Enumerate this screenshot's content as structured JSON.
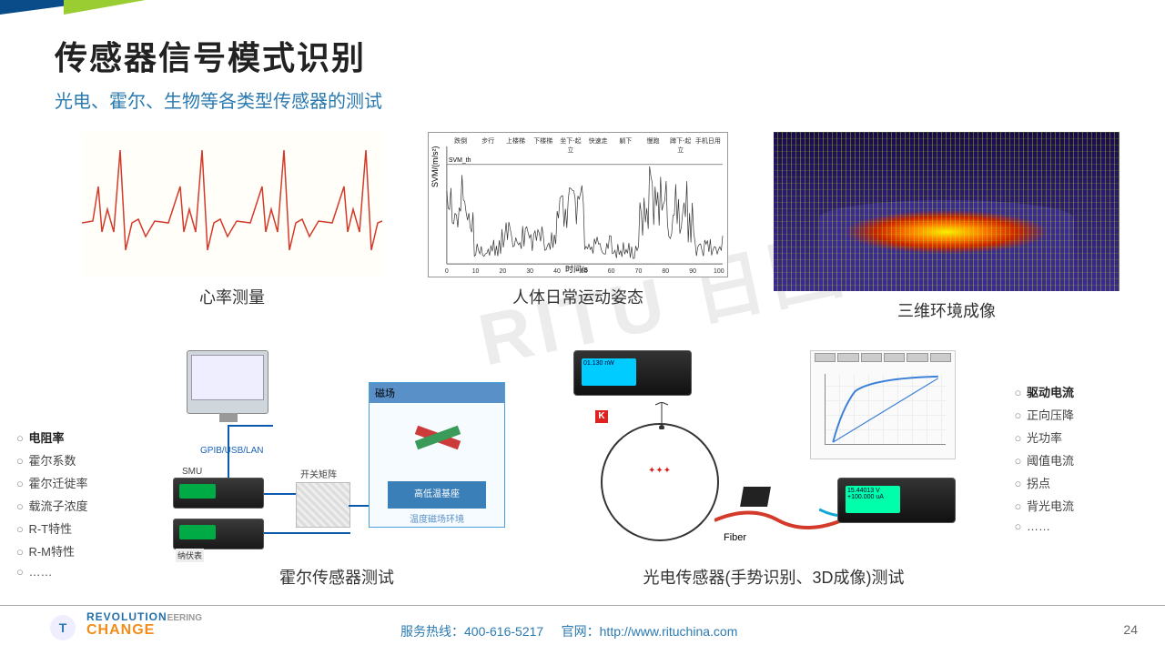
{
  "title": "传感器信号模式识别",
  "subtitle": "光电、霍尔、生物等各类型传感器的测试",
  "watermark": "RITU 日图科技",
  "row1": {
    "ecg": {
      "caption": "心率测量",
      "line_color": "#d43a2a",
      "bg": "#fffef9"
    },
    "svm": {
      "caption": "人体日常运动姿态",
      "ylabel": "SVM/(m/s²)",
      "xlabel": "时间/s",
      "top_labels": [
        "跌倒",
        "步行",
        "上楼梯",
        "下楼梯",
        "坐下-起立",
        "快速走",
        "躺下",
        "慢跑",
        "蹲下-起立",
        "手机日用"
      ],
      "xlim": [
        0,
        100
      ],
      "ylim": [
        0,
        50
      ],
      "line_color": "#333333"
    },
    "lidar": {
      "caption": "三维环境成像"
    }
  },
  "left_params": [
    "电阻率",
    "霍尔系数",
    "霍尔迁徙率",
    "载流子浓度",
    "R-T特性",
    "R-M特性",
    "……"
  ],
  "right_params": [
    "驱动电流",
    "正向压降",
    "光功率",
    "阈值电流",
    "拐点",
    "背光电流",
    "……"
  ],
  "hall": {
    "caption": "霍尔传感器测试",
    "labels": {
      "gpib": "GPIB/USB/LAN",
      "smu": "SMU",
      "switch": "开关矩阵",
      "nv": "纳伏表",
      "magfield": "磁场",
      "base": "高低温基座",
      "env": "温度磁场环境"
    }
  },
  "photo": {
    "caption": "光电传感器(手势识别、3D成像)测试",
    "meter1_reading": "01.130 nW",
    "meter2_reading": "15.44013 V\n+100.000 uA",
    "fiber": "Fiber",
    "k": "K",
    "curve_color": "#3a7fd8"
  },
  "footer": {
    "logo": "T",
    "brand_top": "REVOLUTION",
    "brand_bot": "CHANGE",
    "brand_side": "EERING",
    "hotline_label": "服务热线：",
    "hotline": "400-616-5217",
    "site_label": "官网：",
    "site": "http://www.rituchina.com",
    "page": "24"
  },
  "colors": {
    "accent_blue": "#2a7ab0",
    "accent_orange": "#f28c1a",
    "dark": "#222222"
  }
}
